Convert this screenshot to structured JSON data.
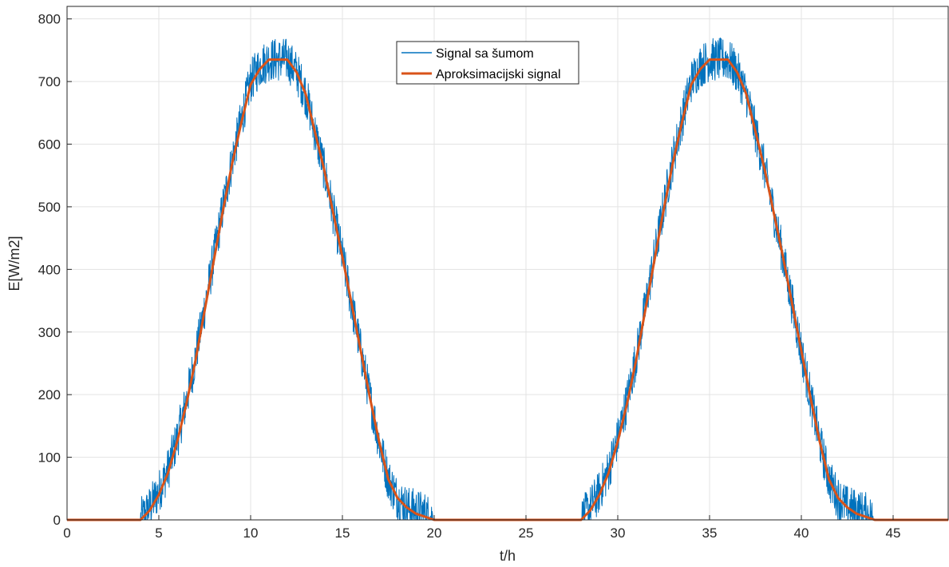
{
  "chart_data": {
    "type": "line",
    "title": "",
    "xlabel": "t/h",
    "ylabel": "E[W/m2]",
    "xlim": [
      0,
      48
    ],
    "ylim": [
      0,
      820
    ],
    "xticks": [
      0,
      5,
      10,
      15,
      20,
      25,
      30,
      35,
      40,
      45
    ],
    "yticks": [
      0,
      100,
      200,
      300,
      400,
      500,
      600,
      700,
      800
    ],
    "grid": true,
    "legend_position": "top-center",
    "series": [
      {
        "name": "Signal sa šumom",
        "color": "#0072BD",
        "noisy": true,
        "x": [
          0,
          4,
          4.5,
          5,
          5.5,
          6,
          6.5,
          7,
          7.5,
          8,
          8.5,
          9,
          9.5,
          10,
          10.5,
          11,
          11.5,
          12,
          12.5,
          13,
          13.5,
          14,
          14.5,
          15,
          15.5,
          16,
          16.5,
          17,
          17.5,
          18,
          18.5,
          19,
          19.5,
          20,
          24,
          28,
          28.5,
          29,
          29.5,
          30,
          30.5,
          31,
          31.5,
          32,
          32.5,
          33,
          33.5,
          34,
          34.5,
          35,
          35.5,
          36,
          36.5,
          37,
          37.5,
          38,
          38.5,
          39,
          39.5,
          40,
          40.5,
          41,
          41.5,
          42,
          42.5,
          43,
          43.5,
          44,
          48
        ],
        "y": [
          0,
          0,
          20,
          45,
          80,
          130,
          190,
          260,
          340,
          420,
          500,
          575,
          640,
          700,
          725,
          735,
          735,
          735,
          715,
          680,
          620,
          560,
          490,
          420,
          345,
          270,
          195,
          125,
          65,
          35,
          20,
          15,
          10,
          0,
          0,
          0,
          20,
          45,
          80,
          130,
          190,
          260,
          340,
          420,
          500,
          575,
          640,
          700,
          725,
          735,
          735,
          735,
          715,
          680,
          620,
          560,
          490,
          420,
          345,
          270,
          195,
          125,
          65,
          35,
          20,
          15,
          10,
          0,
          0
        ]
      },
      {
        "name": "Aproksimacijski signal",
        "color": "#D95319",
        "noisy": false,
        "x": [
          0,
          4,
          4.5,
          5,
          5.5,
          6,
          6.5,
          7,
          7.5,
          8,
          8.5,
          9,
          9.5,
          10,
          10.5,
          11,
          11.5,
          12,
          12.5,
          13,
          13.5,
          14,
          14.5,
          15,
          15.5,
          16,
          16.5,
          17,
          17.5,
          18,
          18.5,
          19,
          19.5,
          20,
          24,
          28,
          28.5,
          29,
          29.5,
          30,
          30.5,
          31,
          31.5,
          32,
          32.5,
          33,
          33.5,
          34,
          34.5,
          35,
          35.5,
          36,
          36.5,
          37,
          37.5,
          38,
          38.5,
          39,
          39.5,
          40,
          40.5,
          41,
          41.5,
          42,
          42.5,
          43,
          43.5,
          44,
          48
        ],
        "y": [
          0,
          0,
          15,
          40,
          75,
          125,
          185,
          255,
          335,
          415,
          495,
          570,
          635,
          695,
          720,
          735,
          735,
          735,
          715,
          680,
          620,
          560,
          490,
          420,
          345,
          270,
          195,
          125,
          65,
          35,
          20,
          10,
          5,
          0,
          0,
          0,
          15,
          40,
          75,
          125,
          185,
          255,
          335,
          415,
          495,
          570,
          635,
          695,
          720,
          735,
          735,
          735,
          715,
          680,
          620,
          560,
          490,
          420,
          345,
          270,
          195,
          125,
          65,
          35,
          20,
          10,
          5,
          0,
          0
        ]
      }
    ]
  }
}
